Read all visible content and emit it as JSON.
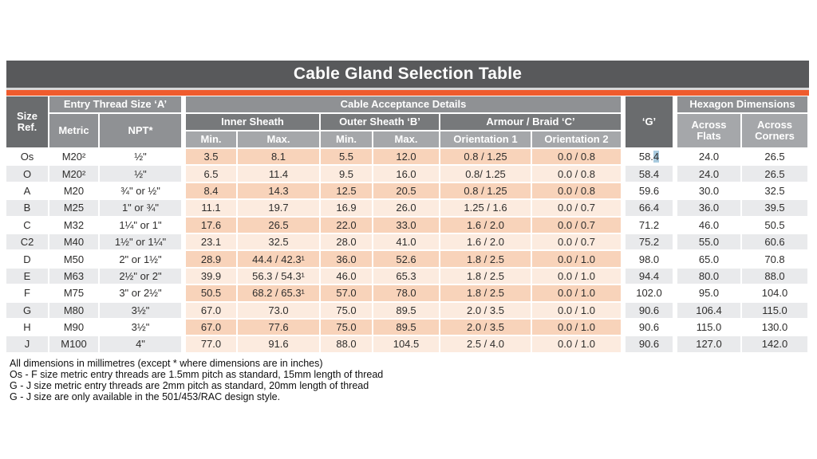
{
  "title": "Cable Gland Selection Table",
  "header": {
    "size_ref": "Size Ref.",
    "entry_thread": "Entry Thread Size ‘A’",
    "metric": "Metric",
    "npt": "NPT*",
    "cable_acceptance": "Cable Acceptance Details",
    "inner_sheath": "Inner Sheath",
    "outer_sheath": "Outer Sheath ‘B’",
    "armour_braid": "Armour / Braid ‘C’",
    "min": "Min.",
    "max": "Max.",
    "orientation1": "Orientation 1",
    "orientation2": "Orientation 2",
    "g": "‘G’",
    "hexagon": "Hexagon Dimensions",
    "across_flats": "Across Flats",
    "across_corners": "Across Corners"
  },
  "rows": [
    {
      "size": "Os",
      "metric": "M20²",
      "npt": "½\"",
      "inner_min": "3.5",
      "inner_max": "8.1",
      "outer_min": "5.5",
      "outer_max": "12.0",
      "orient1": "0.8 / 1.25",
      "orient2": "0.0 / 0.8",
      "g": "58.4",
      "flats": "24.0",
      "corners": "26.5"
    },
    {
      "size": "O",
      "metric": "M20²",
      "npt": "½\"",
      "inner_min": "6.5",
      "inner_max": "11.4",
      "outer_min": "9.5",
      "outer_max": "16.0",
      "orient1": "0.8/ 1.25",
      "orient2": "0.0 / 0.8",
      "g": "58.4",
      "flats": "24.0",
      "corners": "26.5"
    },
    {
      "size": "A",
      "metric": "M20",
      "npt": "¾\" or ½\"",
      "inner_min": "8.4",
      "inner_max": "14.3",
      "outer_min": "12.5",
      "outer_max": "20.5",
      "orient1": "0.8 / 1.25",
      "orient2": "0.0 / 0.8",
      "g": "59.6",
      "flats": "30.0",
      "corners": "32.5"
    },
    {
      "size": "B",
      "metric": "M25",
      "npt": "1\" or ¾\"",
      "inner_min": "11.1",
      "inner_max": "19.7",
      "outer_min": "16.9",
      "outer_max": "26.0",
      "orient1": "1.25 / 1.6",
      "orient2": "0.0 / 0.7",
      "g": "66.4",
      "flats": "36.0",
      "corners": "39.5"
    },
    {
      "size": "C",
      "metric": "M32",
      "npt": "1¼\" or 1\"",
      "inner_min": "17.6",
      "inner_max": "26.5",
      "outer_min": "22.0",
      "outer_max": "33.0",
      "orient1": "1.6 / 2.0",
      "orient2": "0.0 / 0.7",
      "g": "71.2",
      "flats": "46.0",
      "corners": "50.5"
    },
    {
      "size": "C2",
      "metric": "M40",
      "npt": "1½\" or 1¼\"",
      "inner_min": "23.1",
      "inner_max": "32.5",
      "outer_min": "28.0",
      "outer_max": "41.0",
      "orient1": "1.6 / 2.0",
      "orient2": "0.0 / 0.7",
      "g": "75.2",
      "flats": "55.0",
      "corners": "60.6"
    },
    {
      "size": "D",
      "metric": "M50",
      "npt": "2\" or 1½\"",
      "inner_min": "28.9",
      "inner_max": "44.4 / 42.3¹",
      "outer_min": "36.0",
      "outer_max": "52.6",
      "orient1": "1.8 / 2.5",
      "orient2": "0.0 / 1.0",
      "g": "98.0",
      "flats": "65.0",
      "corners": "70.8"
    },
    {
      "size": "E",
      "metric": "M63",
      "npt": "2½\" or 2\"",
      "inner_min": "39.9",
      "inner_max": "56.3 / 54.3¹",
      "outer_min": "46.0",
      "outer_max": "65.3",
      "orient1": "1.8 / 2.5",
      "orient2": "0.0 / 1.0",
      "g": "94.4",
      "flats": "80.0",
      "corners": "88.0"
    },
    {
      "size": "F",
      "metric": "M75",
      "npt": "3\" or 2½\"",
      "inner_min": "50.5",
      "inner_max": "68.2 / 65.3¹",
      "outer_min": "57.0",
      "outer_max": "78.0",
      "orient1": "1.8 / 2.5",
      "orient2": "0.0 / 1.0",
      "g": "102.0",
      "flats": "95.0",
      "corners": "104.0"
    },
    {
      "size": "G",
      "metric": "M80",
      "npt": "3½\"",
      "inner_min": "67.0",
      "inner_max": "73.0",
      "outer_min": "75.0",
      "outer_max": "89.5",
      "orient1": "2.0 / 3.5",
      "orient2": "0.0 / 1.0",
      "g": "90.6",
      "flats": "106.4",
      "corners": "115.0"
    },
    {
      "size": "H",
      "metric": "M90",
      "npt": "3½\"",
      "inner_min": "67.0",
      "inner_max": "77.6",
      "outer_min": "75.0",
      "outer_max": "89.5",
      "orient1": "2.0 / 3.5",
      "orient2": "0.0 / 1.0",
      "g": "90.6",
      "flats": "115.0",
      "corners": "130.0"
    },
    {
      "size": "J",
      "metric": "M100",
      "npt": "4\"",
      "inner_min": "77.0",
      "inner_max": "91.6",
      "outer_min": "88.0",
      "outer_max": "104.5",
      "orient1": "2.5 / 4.0",
      "orient2": "0.0 / 1.0",
      "g": "90.6",
      "flats": "127.0",
      "corners": "142.0"
    }
  ],
  "selection": {
    "row_index": 0,
    "column": "g",
    "selected_text": "4",
    "highlight_color": "#a9cbdf"
  },
  "notes": [
    "All dimensions in millimetres (except * where dimensions are in inches)",
    "Os - F size metric entry threads are 1.5mm pitch as standard, 15mm length of thread",
    "G - J size metric entry threads are 2mm pitch as standard, 20mm length of thread",
    "G - J size are only available in the 501/453/RAC design style."
  ],
  "colors": {
    "title_bar": "#58595b",
    "accent_orange": "#ef5b2d",
    "header_dark": "#6a6c6e",
    "header_mid": "#8f9194",
    "header_sub": "#77797b",
    "header_light": "#a5a7aa",
    "row_peach_dark": "#f8d3ba",
    "row_peach_light": "#fcebdf",
    "row_gray": "#e9eaec"
  }
}
